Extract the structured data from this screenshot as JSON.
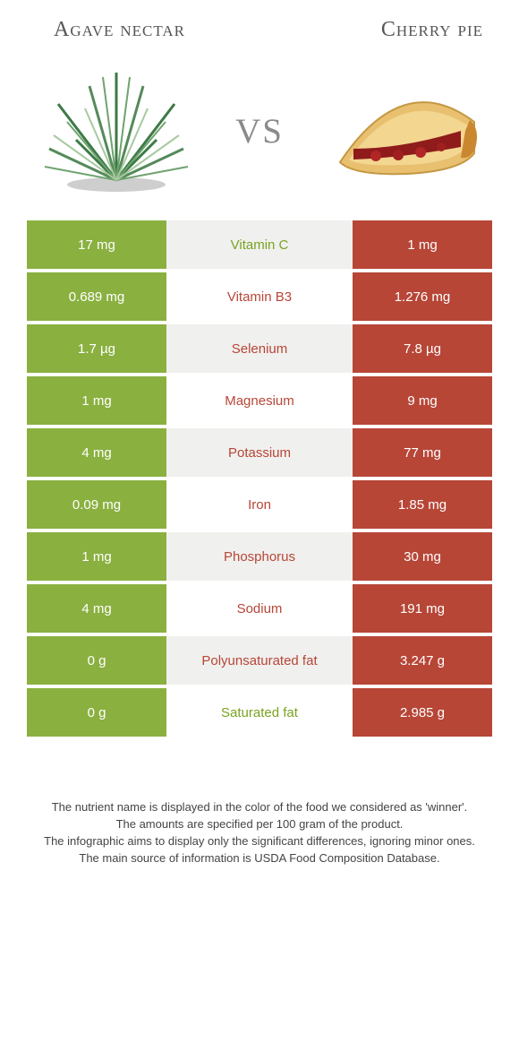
{
  "titles": {
    "left": "Agave nectar",
    "right": "Cherry pie"
  },
  "vs": "vs",
  "colors": {
    "left_bg": "#8ab040",
    "right_bg": "#b74637",
    "mid_green": "#7aa320",
    "mid_red": "#b74637",
    "row_alt_bg": "#f0f0ee"
  },
  "rows": [
    {
      "left": "17 mg",
      "label": "Vitamin C",
      "right": "1 mg",
      "winner": "left"
    },
    {
      "left": "0.689 mg",
      "label": "Vitamin B3",
      "right": "1.276 mg",
      "winner": "right"
    },
    {
      "left": "1.7 µg",
      "label": "Selenium",
      "right": "7.8 µg",
      "winner": "right"
    },
    {
      "left": "1 mg",
      "label": "Magnesium",
      "right": "9 mg",
      "winner": "right"
    },
    {
      "left": "4 mg",
      "label": "Potassium",
      "right": "77 mg",
      "winner": "right"
    },
    {
      "left": "0.09 mg",
      "label": "Iron",
      "right": "1.85 mg",
      "winner": "right"
    },
    {
      "left": "1 mg",
      "label": "Phosphorus",
      "right": "30 mg",
      "winner": "right"
    },
    {
      "left": "4 mg",
      "label": "Sodium",
      "right": "191 mg",
      "winner": "right"
    },
    {
      "left": "0 g",
      "label": "Polyunsaturated fat",
      "right": "3.247 g",
      "winner": "right"
    },
    {
      "left": "0 g",
      "label": "Saturated fat",
      "right": "2.985 g",
      "winner": "left"
    }
  ],
  "footnote": {
    "l1": "The nutrient name is displayed in the color of the food we considered as 'winner'.",
    "l2": "The amounts are specified per 100 gram of the product.",
    "l3": "The infographic aims to display only the significant differences, ignoring minor ones.",
    "l4": "The main source of information is USDA Food Composition Database."
  }
}
